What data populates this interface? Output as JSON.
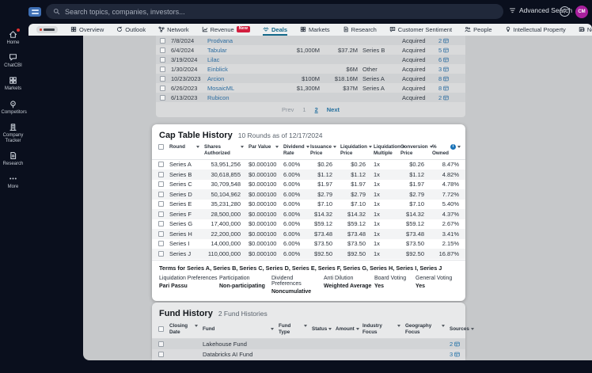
{
  "topbar": {
    "search_placeholder": "Search topics, companies, investors...",
    "advanced_search_label": "Advanced Search",
    "help_label": "?",
    "avatar_initials": "CM"
  },
  "sidebar": {
    "items": [
      {
        "label": "Home",
        "icon": "home",
        "notification": true
      },
      {
        "label": "ChatCBI",
        "icon": "chat",
        "notification": false
      },
      {
        "label": "Markets",
        "icon": "grid",
        "notification": false
      },
      {
        "label": "Competitors",
        "icon": "target",
        "notification": false
      },
      {
        "label": "Company Tracker",
        "icon": "building",
        "notification": false
      },
      {
        "label": "Research",
        "icon": "doc",
        "notification": false
      },
      {
        "label": "More",
        "icon": "ellipsis",
        "notification": false
      }
    ]
  },
  "tabs": {
    "items": [
      {
        "label": "Overview",
        "icon": "grid",
        "active": false
      },
      {
        "label": "Outlook",
        "icon": "refresh",
        "active": false
      },
      {
        "label": "Network",
        "icon": "network",
        "active": false
      },
      {
        "label": "Revenue",
        "icon": "chart",
        "badge": "New",
        "active": false
      },
      {
        "label": "Deals",
        "icon": "deals",
        "active": true
      },
      {
        "label": "Markets",
        "icon": "grid",
        "active": false
      },
      {
        "label": "Research",
        "icon": "doc",
        "active": false
      },
      {
        "label": "Customer Sentiment",
        "icon": "sentiment",
        "active": false
      },
      {
        "label": "People",
        "icon": "people",
        "active": false
      },
      {
        "label": "Intellectual Property",
        "icon": "bulb",
        "active": false
      },
      {
        "label": "News",
        "icon": "news",
        "active": false
      }
    ]
  },
  "deals": {
    "rows": [
      {
        "date": "7/8/2024",
        "company": "Prodvana",
        "amount1": "",
        "amount2": "",
        "round": "",
        "status": "Acquired",
        "sources": "2"
      },
      {
        "date": "6/4/2024",
        "company": "Tabular",
        "amount1": "$1,000M",
        "amount2": "$37.2M",
        "round": "Series B",
        "status": "Acquired",
        "sources": "5"
      },
      {
        "date": "3/19/2024",
        "company": "Lilac",
        "amount1": "",
        "amount2": "",
        "round": "",
        "status": "Acquired",
        "sources": "6"
      },
      {
        "date": "1/30/2024",
        "company": "Einblick",
        "amount1": "",
        "amount2": "$6M",
        "round": "Other",
        "status": "Acquired",
        "sources": "3"
      },
      {
        "date": "10/23/2023",
        "company": "Arcion",
        "amount1": "$100M",
        "amount2": "$18.16M",
        "round": "Series A",
        "status": "Acquired",
        "sources": "8"
      },
      {
        "date": "6/26/2023",
        "company": "MosaicML",
        "amount1": "$1,300M",
        "amount2": "$37M",
        "round": "Series A",
        "status": "Acquired",
        "sources": "8"
      },
      {
        "date": "6/13/2023",
        "company": "Rubicon",
        "amount1": "",
        "amount2": "",
        "round": "",
        "status": "Acquired",
        "sources": "2"
      }
    ],
    "pagination": {
      "prev": "Prev",
      "pages": [
        "1",
        "2"
      ],
      "current": "2",
      "next": "Next"
    }
  },
  "cap_table": {
    "title": "Cap Table History",
    "subtitle": "10 Rounds as of 12/17/2024",
    "columns": [
      "Round",
      "Shares Authorized",
      "Par Value",
      "Dividend Rate",
      "Issuance Price",
      "Liquidation Price",
      "Liquidation Multiple",
      "Conversion Price",
      "% Owned"
    ],
    "rows": [
      {
        "round": "Series A",
        "shares_authorized": "53,951,256",
        "par_value": "$0.000100",
        "dividend_rate": "6.00%",
        "issuance_price": "$0.26",
        "liquidation_price": "$0.26",
        "liquidation_multiple": "1x",
        "conversion_price": "$0.26",
        "pct_owned": "8.47%"
      },
      {
        "round": "Series B",
        "shares_authorized": "30,618,855",
        "par_value": "$0.000100",
        "dividend_rate": "6.00%",
        "issuance_price": "$1.12",
        "liquidation_price": "$1.12",
        "liquidation_multiple": "1x",
        "conversion_price": "$1.12",
        "pct_owned": "4.82%"
      },
      {
        "round": "Series C",
        "shares_authorized": "30,709,548",
        "par_value": "$0.000100",
        "dividend_rate": "6.00%",
        "issuance_price": "$1.97",
        "liquidation_price": "$1.97",
        "liquidation_multiple": "1x",
        "conversion_price": "$1.97",
        "pct_owned": "4.78%"
      },
      {
        "round": "Series D",
        "shares_authorized": "50,104,962",
        "par_value": "$0.000100",
        "dividend_rate": "6.00%",
        "issuance_price": "$2.79",
        "liquidation_price": "$2.79",
        "liquidation_multiple": "1x",
        "conversion_price": "$2.79",
        "pct_owned": "7.72%"
      },
      {
        "round": "Series E",
        "shares_authorized": "35,231,280",
        "par_value": "$0.000100",
        "dividend_rate": "6.00%",
        "issuance_price": "$7.10",
        "liquidation_price": "$7.10",
        "liquidation_multiple": "1x",
        "conversion_price": "$7.10",
        "pct_owned": "5.40%"
      },
      {
        "round": "Series F",
        "shares_authorized": "28,500,000",
        "par_value": "$0.000100",
        "dividend_rate": "6.00%",
        "issuance_price": "$14.32",
        "liquidation_price": "$14.32",
        "liquidation_multiple": "1x",
        "conversion_price": "$14.32",
        "pct_owned": "4.37%"
      },
      {
        "round": "Series G",
        "shares_authorized": "17,400,000",
        "par_value": "$0.000100",
        "dividend_rate": "6.00%",
        "issuance_price": "$59.12",
        "liquidation_price": "$59.12",
        "liquidation_multiple": "1x",
        "conversion_price": "$59.12",
        "pct_owned": "2.67%"
      },
      {
        "round": "Series H",
        "shares_authorized": "22,200,000",
        "par_value": "$0.000100",
        "dividend_rate": "6.00%",
        "issuance_price": "$73.48",
        "liquidation_price": "$73.48",
        "liquidation_multiple": "1x",
        "conversion_price": "$73.48",
        "pct_owned": "3.41%"
      },
      {
        "round": "Series I",
        "shares_authorized": "14,000,000",
        "par_value": "$0.000100",
        "dividend_rate": "6.00%",
        "issuance_price": "$73.50",
        "liquidation_price": "$73.50",
        "liquidation_multiple": "1x",
        "conversion_price": "$73.50",
        "pct_owned": "2.15%"
      },
      {
        "round": "Series J",
        "shares_authorized": "110,000,000",
        "par_value": "$0.000100",
        "dividend_rate": "6.00%",
        "issuance_price": "$92.50",
        "liquidation_price": "$92.50",
        "liquidation_multiple": "1x",
        "conversion_price": "$92.50",
        "pct_owned": "16.87%"
      }
    ],
    "terms": {
      "title": "Terms for Series A, Series B, Series C, Series D, Series E, Series F, Series G, Series H, Series I, Series J",
      "items": [
        {
          "label": "Liquidation Preferences",
          "value": "Pari Passu"
        },
        {
          "label": "Participation",
          "value": "Non-participating"
        },
        {
          "label": "Dividend Preferences",
          "value": "Noncumulative"
        },
        {
          "label": "Anti Dilution",
          "value": "Weighted Average"
        },
        {
          "label": "Board Voting",
          "value": "Yes"
        },
        {
          "label": "General Voting",
          "value": "Yes"
        }
      ]
    }
  },
  "fund_history": {
    "title": "Fund History",
    "subtitle": "2 Fund Histories",
    "columns": [
      "Closing Date",
      "Fund",
      "Fund Type",
      "Status",
      "Amount",
      "Industry Focus",
      "Geography Focus",
      "Sources"
    ],
    "rows": [
      {
        "closing_date": "",
        "fund": "Lakehouse Fund",
        "fund_type": "",
        "status": "",
        "amount": "",
        "industry_focus": "",
        "geography_focus": "",
        "sources": "2"
      },
      {
        "closing_date": "",
        "fund": "Databricks AI Fund",
        "fund_type": "",
        "status": "",
        "amount": "",
        "industry_focus": "",
        "geography_focus": "",
        "sources": "3"
      }
    ]
  },
  "colors": {
    "chrome_dark": "#0a0f1d",
    "accent_teal": "#14698a",
    "link_blue": "#2d6da0",
    "badge_red": "#d31f3f",
    "avatar_magenta": "#a9209e",
    "info_blue": "#1a73b8",
    "notification_red": "#e03131"
  }
}
